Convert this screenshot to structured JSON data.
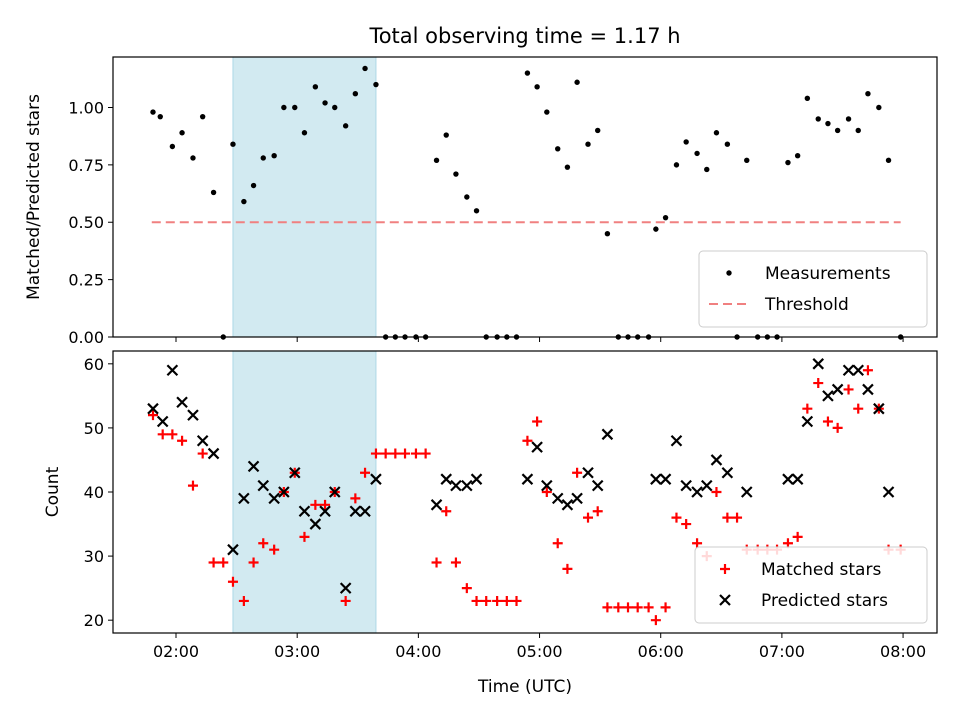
{
  "figure": {
    "title": "Total observing time = 1.17 h",
    "xlabel": "Time (UTC)",
    "x_ticks": [
      "02:00",
      "03:00",
      "04:00",
      "05:00",
      "06:00",
      "07:00",
      "08:00"
    ],
    "x_tick_hours": [
      2,
      3,
      4,
      5,
      6,
      7,
      8
    ],
    "xlim_hours": [
      1.48,
      8.28
    ],
    "highlight_hours": [
      2.47,
      3.65
    ],
    "highlight_color": "#add8e6"
  },
  "chart_data": [
    {
      "type": "scatter",
      "ylabel": "Matched/Predicted stars",
      "ylim": [
        0,
        1.22
      ],
      "y_ticks": [
        0.0,
        0.25,
        0.5,
        0.75,
        1.0
      ],
      "y_tick_labels": [
        "0.00",
        "0.25",
        "0.50",
        "0.75",
        "1.00"
      ],
      "legend_position": "bottom-right",
      "threshold": {
        "name": "Threshold",
        "value": 0.5,
        "x_range_hours": [
          1.8,
          7.98
        ],
        "color": "#f08080"
      },
      "series": [
        {
          "name": "Measurements",
          "color": "#000000",
          "points": [
            [
              1.81,
              0.98
            ],
            [
              1.87,
              0.96
            ],
            [
              1.97,
              0.83
            ],
            [
              2.05,
              0.89
            ],
            [
              2.14,
              0.78
            ],
            [
              2.22,
              0.96
            ],
            [
              2.31,
              0.63
            ],
            [
              2.39,
              0.0
            ],
            [
              2.47,
              0.84
            ],
            [
              2.56,
              0.59
            ],
            [
              2.64,
              0.66
            ],
            [
              2.72,
              0.78
            ],
            [
              2.81,
              0.79
            ],
            [
              2.89,
              1.0
            ],
            [
              2.98,
              1.0
            ],
            [
              3.06,
              0.89
            ],
            [
              3.15,
              1.09
            ],
            [
              3.23,
              1.02
            ],
            [
              3.31,
              1.0
            ],
            [
              3.4,
              0.92
            ],
            [
              3.48,
              1.06
            ],
            [
              3.56,
              1.17
            ],
            [
              3.65,
              1.1
            ],
            [
              3.73,
              0.0
            ],
            [
              3.81,
              0.0
            ],
            [
              3.89,
              0.0
            ],
            [
              3.98,
              0.0
            ],
            [
              4.06,
              0.0
            ],
            [
              4.15,
              0.77
            ],
            [
              4.23,
              0.88
            ],
            [
              4.31,
              0.71
            ],
            [
              4.4,
              0.61
            ],
            [
              4.48,
              0.55
            ],
            [
              4.56,
              0.0
            ],
            [
              4.65,
              0.0
            ],
            [
              4.73,
              0.0
            ],
            [
              4.81,
              0.0
            ],
            [
              4.9,
              1.15
            ],
            [
              4.98,
              1.09
            ],
            [
              5.06,
              0.98
            ],
            [
              5.15,
              0.82
            ],
            [
              5.23,
              0.74
            ],
            [
              5.31,
              1.11
            ],
            [
              5.4,
              0.84
            ],
            [
              5.48,
              0.9
            ],
            [
              5.56,
              0.45
            ],
            [
              5.65,
              0.0
            ],
            [
              5.73,
              0.0
            ],
            [
              5.81,
              0.0
            ],
            [
              5.9,
              0.0
            ],
            [
              5.96,
              0.47
            ],
            [
              6.04,
              0.52
            ],
            [
              6.13,
              0.75
            ],
            [
              6.21,
              0.85
            ],
            [
              6.3,
              0.8
            ],
            [
              6.38,
              0.73
            ],
            [
              6.46,
              0.89
            ],
            [
              6.55,
              0.84
            ],
            [
              6.63,
              0.0
            ],
            [
              6.71,
              0.77
            ],
            [
              6.8,
              0.0
            ],
            [
              6.88,
              0.0
            ],
            [
              6.96,
              0.0
            ],
            [
              7.05,
              0.76
            ],
            [
              7.13,
              0.79
            ],
            [
              7.21,
              1.04
            ],
            [
              7.3,
              0.95
            ],
            [
              7.38,
              0.93
            ],
            [
              7.46,
              0.9
            ],
            [
              7.55,
              0.95
            ],
            [
              7.63,
              0.9
            ],
            [
              7.71,
              1.06
            ],
            [
              7.8,
              1.0
            ],
            [
              7.88,
              0.77
            ],
            [
              7.98,
              0.0
            ]
          ]
        }
      ]
    },
    {
      "type": "scatter",
      "ylabel": "Count",
      "ylim": [
        18,
        62
      ],
      "y_ticks": [
        20,
        30,
        40,
        50,
        60
      ],
      "y_tick_labels": [
        "20",
        "30",
        "40",
        "50",
        "60"
      ],
      "legend_position": "bottom-right",
      "series": [
        {
          "name": "Matched stars",
          "marker": "plus",
          "color": "#ff0000",
          "points": [
            [
              1.81,
              52
            ],
            [
              1.89,
              49
            ],
            [
              1.97,
              49
            ],
            [
              2.05,
              48
            ],
            [
              2.14,
              41
            ],
            [
              2.22,
              46
            ],
            [
              2.31,
              29
            ],
            [
              2.39,
              29
            ],
            [
              2.47,
              26
            ],
            [
              2.56,
              23
            ],
            [
              2.64,
              29
            ],
            [
              2.72,
              32
            ],
            [
              2.81,
              31
            ],
            [
              2.89,
              40
            ],
            [
              2.98,
              43
            ],
            [
              3.06,
              33
            ],
            [
              3.15,
              38
            ],
            [
              3.23,
              38
            ],
            [
              3.31,
              40
            ],
            [
              3.4,
              23
            ],
            [
              3.48,
              39
            ],
            [
              3.56,
              43
            ],
            [
              3.65,
              46
            ],
            [
              3.73,
              46
            ],
            [
              3.81,
              46
            ],
            [
              3.89,
              46
            ],
            [
              3.98,
              46
            ],
            [
              4.06,
              46
            ],
            [
              4.15,
              29
            ],
            [
              4.23,
              37
            ],
            [
              4.31,
              29
            ],
            [
              4.4,
              25
            ],
            [
              4.48,
              23
            ],
            [
              4.56,
              23
            ],
            [
              4.65,
              23
            ],
            [
              4.73,
              23
            ],
            [
              4.81,
              23
            ],
            [
              4.9,
              48
            ],
            [
              4.98,
              51
            ],
            [
              5.06,
              40
            ],
            [
              5.15,
              32
            ],
            [
              5.23,
              28
            ],
            [
              5.31,
              43
            ],
            [
              5.4,
              36
            ],
            [
              5.48,
              37
            ],
            [
              5.56,
              22
            ],
            [
              5.65,
              22
            ],
            [
              5.73,
              22
            ],
            [
              5.81,
              22
            ],
            [
              5.9,
              22
            ],
            [
              5.96,
              20
            ],
            [
              6.04,
              22
            ],
            [
              6.13,
              36
            ],
            [
              6.21,
              35
            ],
            [
              6.3,
              32
            ],
            [
              6.38,
              30
            ],
            [
              6.46,
              40
            ],
            [
              6.55,
              36
            ],
            [
              6.63,
              36
            ],
            [
              6.71,
              31
            ],
            [
              6.8,
              31
            ],
            [
              6.88,
              31
            ],
            [
              6.96,
              31
            ],
            [
              7.05,
              32
            ],
            [
              7.13,
              33
            ],
            [
              7.21,
              53
            ],
            [
              7.3,
              57
            ],
            [
              7.38,
              51
            ],
            [
              7.46,
              50
            ],
            [
              7.55,
              56
            ],
            [
              7.63,
              53
            ],
            [
              7.71,
              59
            ],
            [
              7.8,
              53
            ],
            [
              7.88,
              31
            ],
            [
              7.98,
              31
            ]
          ]
        },
        {
          "name": "Predicted stars",
          "marker": "x",
          "color": "#000000",
          "points": [
            [
              1.81,
              53
            ],
            [
              1.89,
              51
            ],
            [
              1.97,
              59
            ],
            [
              2.05,
              54
            ],
            [
              2.14,
              52
            ],
            [
              2.22,
              48
            ],
            [
              2.31,
              46
            ],
            [
              2.47,
              31
            ],
            [
              2.56,
              39
            ],
            [
              2.64,
              44
            ],
            [
              2.72,
              41
            ],
            [
              2.81,
              39
            ],
            [
              2.89,
              40
            ],
            [
              2.98,
              43
            ],
            [
              3.06,
              37
            ],
            [
              3.15,
              35
            ],
            [
              3.23,
              37
            ],
            [
              3.31,
              40
            ],
            [
              3.4,
              25
            ],
            [
              3.48,
              37
            ],
            [
              3.56,
              37
            ],
            [
              3.65,
              42
            ],
            [
              4.15,
              38
            ],
            [
              4.23,
              42
            ],
            [
              4.31,
              41
            ],
            [
              4.4,
              41
            ],
            [
              4.48,
              42
            ],
            [
              4.9,
              42
            ],
            [
              4.98,
              47
            ],
            [
              5.06,
              41
            ],
            [
              5.15,
              39
            ],
            [
              5.23,
              38
            ],
            [
              5.31,
              39
            ],
            [
              5.4,
              43
            ],
            [
              5.48,
              41
            ],
            [
              5.56,
              49
            ],
            [
              5.96,
              42
            ],
            [
              6.04,
              42
            ],
            [
              6.13,
              48
            ],
            [
              6.21,
              41
            ],
            [
              6.3,
              40
            ],
            [
              6.38,
              41
            ],
            [
              6.46,
              45
            ],
            [
              6.55,
              43
            ],
            [
              6.71,
              40
            ],
            [
              7.05,
              42
            ],
            [
              7.13,
              42
            ],
            [
              7.21,
              51
            ],
            [
              7.3,
              60
            ],
            [
              7.38,
              55
            ],
            [
              7.46,
              56
            ],
            [
              7.55,
              59
            ],
            [
              7.63,
              59
            ],
            [
              7.71,
              56
            ],
            [
              7.8,
              53
            ],
            [
              7.88,
              40
            ]
          ]
        }
      ]
    }
  ]
}
